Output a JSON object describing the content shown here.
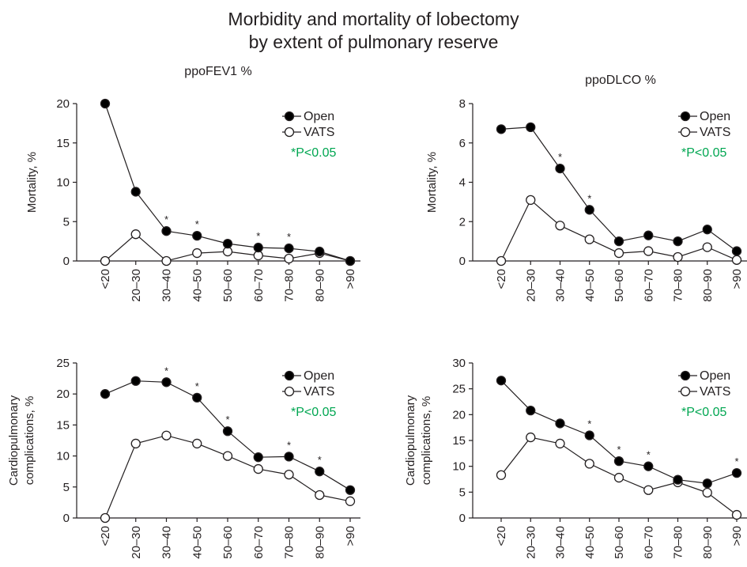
{
  "title_line1": "Morbidity and mortality of lobectomy",
  "title_line2": "by extent of pulmonary reserve",
  "colors": {
    "line": "#231f20",
    "open_fill": "#000000",
    "vats_fill": "#ffffff",
    "significance": "#00a651"
  },
  "chart_data": [
    {
      "type": "line",
      "panel": "top-left",
      "column_title": "ppoFEV1 %",
      "ylabel": "Mortality, %",
      "xlabel": "",
      "categories": [
        "<20",
        "20–30",
        "30–40",
        "40–50",
        "50–60",
        "60–70",
        "70–80",
        "80–90",
        ">90"
      ],
      "ylim": [
        0,
        20
      ],
      "yticks": [
        0,
        5,
        10,
        15,
        20
      ],
      "series": [
        {
          "name": "Open",
          "marker": "filled-circle",
          "values": [
            20,
            8.8,
            3.8,
            3.2,
            2.2,
            1.7,
            1.6,
            1.2,
            0
          ]
        },
        {
          "name": "VATS",
          "marker": "open-circle",
          "values": [
            0,
            3.4,
            0,
            1.0,
            1.2,
            0.7,
            0.3,
            1.0,
            0
          ]
        }
      ],
      "significance_categories": [
        "30–40",
        "40–50",
        "60–70",
        "70–80"
      ],
      "significance_note": "*P<0.05",
      "legend": "top-right",
      "grid": false
    },
    {
      "type": "line",
      "panel": "top-right",
      "column_title": "ppoDLCO %",
      "ylabel": "Mortality, %",
      "xlabel": "",
      "categories": [
        "<20",
        "20–30",
        "30–40",
        "40–50",
        "50–60",
        "60–70",
        "70–80",
        "80–90",
        ">90"
      ],
      "ylim": [
        0,
        8
      ],
      "yticks": [
        0,
        2,
        4,
        6,
        8
      ],
      "series": [
        {
          "name": "Open",
          "marker": "filled-circle",
          "values": [
            6.7,
            6.8,
            4.7,
            2.6,
            1.0,
            1.3,
            1.0,
            1.6,
            0.5
          ]
        },
        {
          "name": "VATS",
          "marker": "open-circle",
          "values": [
            0,
            3.1,
            1.8,
            1.1,
            0.4,
            0.5,
            0.2,
            0.7,
            0.05
          ]
        }
      ],
      "significance_categories": [
        "30–40",
        "40–50"
      ],
      "significance_note": "*P<0.05",
      "legend": "top-right",
      "grid": false
    },
    {
      "type": "line",
      "panel": "bottom-left",
      "column_title": "",
      "ylabel_lines": [
        "Cardiopulmonary",
        "complications, %"
      ],
      "xlabel": "",
      "categories": [
        "<20",
        "20–30",
        "30–40",
        "40–50",
        "50–60",
        "60–70",
        "70–80",
        "80–90",
        ">90"
      ],
      "ylim": [
        0,
        25
      ],
      "yticks": [
        0,
        5,
        10,
        15,
        20,
        25
      ],
      "series": [
        {
          "name": "Open",
          "marker": "filled-circle",
          "values": [
            20,
            22.1,
            21.9,
            19.4,
            14,
            9.8,
            9.9,
            7.5,
            4.5
          ]
        },
        {
          "name": "VATS",
          "marker": "open-circle",
          "values": [
            0,
            12,
            13.3,
            12,
            10,
            7.9,
            7.0,
            3.7,
            2.7
          ]
        }
      ],
      "significance_categories": [
        "30–40",
        "40–50",
        "50–60",
        "70–80",
        "80–90"
      ],
      "significance_note": "*P<0.05",
      "legend": "top-right",
      "grid": false
    },
    {
      "type": "line",
      "panel": "bottom-right",
      "column_title": "",
      "ylabel_lines": [
        "Cardiopulmonary",
        "complications, %"
      ],
      "xlabel": "",
      "categories": [
        "<20",
        "20–30",
        "30–40",
        "40–50",
        "50–60",
        "60–70",
        "70–80",
        "80–90",
        ">90"
      ],
      "ylim": [
        0,
        30
      ],
      "yticks": [
        0,
        5,
        10,
        15,
        20,
        25,
        30
      ],
      "series": [
        {
          "name": "Open",
          "marker": "filled-circle",
          "values": [
            26.6,
            20.8,
            18.3,
            16,
            11,
            10,
            7.4,
            6.7,
            8.7
          ]
        },
        {
          "name": "VATS",
          "marker": "open-circle",
          "values": [
            8.3,
            15.6,
            14.4,
            10.5,
            7.8,
            5.4,
            6.9,
            4.9,
            0.6
          ]
        }
      ],
      "significance_categories": [
        "40–50",
        "50–60",
        "60–70",
        ">90"
      ],
      "significance_note": "*P<0.05",
      "legend": "top-right",
      "grid": false
    }
  ]
}
